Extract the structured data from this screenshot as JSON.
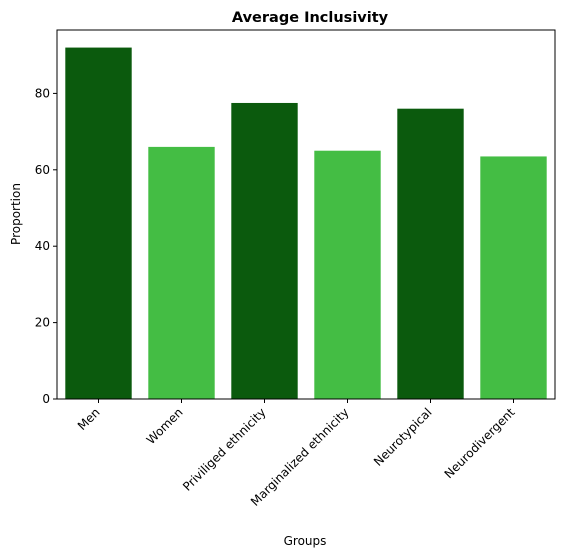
{
  "chart_data": {
    "type": "bar",
    "title": "Average Inclusivity",
    "xlabel": "Groups",
    "ylabel": "Proportion",
    "categories": [
      "Men",
      "Women",
      "Priviliged ethnicity",
      "Marginalized ethnicity",
      "Neurotypical",
      "Neurodivergent"
    ],
    "values": [
      92,
      66,
      77.5,
      65,
      76,
      63.5
    ],
    "colors": [
      "#0b5a0d",
      "#44bd44",
      "#0b5a0d",
      "#44bd44",
      "#0b5a0d",
      "#44bd44"
    ],
    "ylim": [
      0,
      96.6
    ],
    "yticks": [
      0,
      20,
      40,
      60,
      80
    ],
    "grid": false,
    "legend": false
  }
}
